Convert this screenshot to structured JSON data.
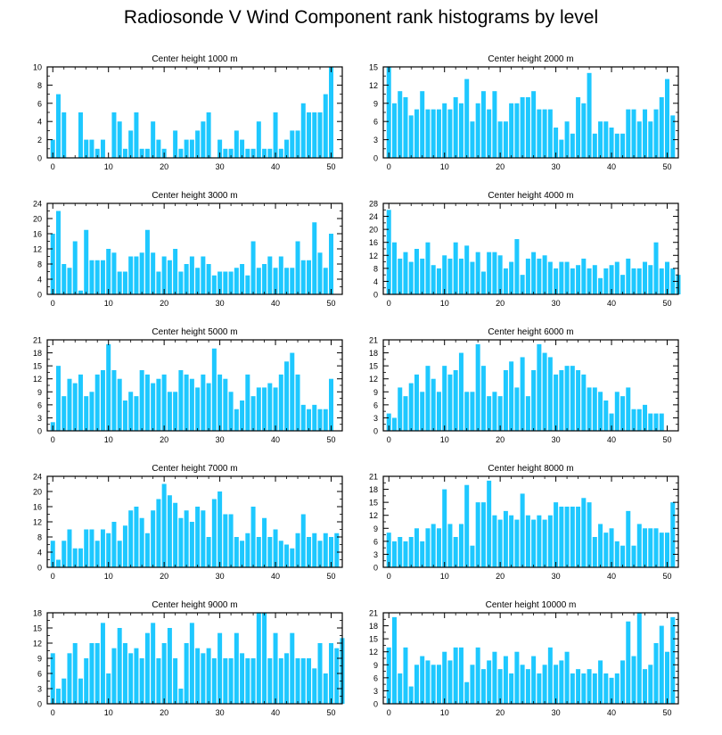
{
  "page_title": "Radiosonde V Wind Component rank histograms by level",
  "bar_color": "#1ec8ff",
  "chart_data": [
    {
      "type": "bar",
      "title": "Center height 1000 m",
      "xlabel": "",
      "ylabel": "",
      "xlim": [
        -1,
        52
      ],
      "ylim": [
        0,
        10
      ],
      "xticks": [
        0,
        10,
        20,
        30,
        40,
        50
      ],
      "yticks": [
        0,
        2,
        4,
        6,
        8,
        10
      ],
      "values": [
        2,
        7,
        5,
        0,
        0,
        5,
        2,
        2,
        1,
        2,
        0,
        5,
        4,
        1,
        3,
        5,
        1,
        1,
        4,
        2,
        1,
        0,
        3,
        1,
        2,
        2,
        3,
        4,
        5,
        0,
        2,
        1,
        1,
        3,
        2,
        1,
        1,
        4,
        1,
        1,
        5,
        1,
        2,
        3,
        3,
        6,
        5,
        5,
        5,
        7,
        10
      ]
    },
    {
      "type": "bar",
      "title": "Center height 2000 m",
      "xlabel": "",
      "ylabel": "",
      "xlim": [
        -1,
        52
      ],
      "ylim": [
        0,
        15
      ],
      "xticks": [
        0,
        10,
        20,
        30,
        40,
        50
      ],
      "yticks": [
        0,
        3,
        6,
        9,
        12,
        15
      ],
      "values": [
        15,
        9,
        11,
        10,
        7,
        8,
        11,
        8,
        8,
        8,
        9,
        8,
        10,
        9,
        13,
        6,
        9,
        11,
        8,
        11,
        6,
        6,
        9,
        9,
        10,
        10,
        11,
        8,
        8,
        8,
        5,
        3,
        6,
        4,
        10,
        9,
        14,
        4,
        6,
        6,
        5,
        4,
        4,
        8,
        8,
        6,
        8,
        6,
        8,
        10,
        13,
        7
      ]
    },
    {
      "type": "bar",
      "title": "Center height 3000 m",
      "xlabel": "",
      "ylabel": "",
      "xlim": [
        -1,
        52
      ],
      "ylim": [
        0,
        24
      ],
      "xticks": [
        0,
        10,
        20,
        30,
        40,
        50
      ],
      "yticks": [
        0,
        4,
        8,
        12,
        16,
        20,
        24
      ],
      "values": [
        16,
        22,
        8,
        7,
        14,
        1,
        17,
        9,
        9,
        9,
        12,
        11,
        6,
        6,
        10,
        10,
        11,
        17,
        11,
        6,
        10,
        9,
        12,
        6,
        8,
        10,
        7,
        10,
        8,
        5,
        6,
        6,
        6,
        7,
        8,
        5,
        14,
        7,
        8,
        10,
        7,
        10,
        7,
        7,
        14,
        9,
        9,
        19,
        11,
        7,
        16
      ]
    },
    {
      "type": "bar",
      "title": "Center height 4000 m",
      "xlabel": "",
      "ylabel": "",
      "xlim": [
        -1,
        52
      ],
      "ylim": [
        0,
        28
      ],
      "xticks": [
        0,
        10,
        20,
        30,
        40,
        50
      ],
      "yticks": [
        0,
        4,
        8,
        12,
        16,
        20,
        24,
        28
      ],
      "values": [
        26,
        16,
        11,
        13,
        10,
        14,
        11,
        16,
        9,
        8,
        12,
        11,
        16,
        11,
        15,
        10,
        13,
        7,
        13,
        13,
        12,
        8,
        10,
        17,
        6,
        11,
        13,
        11,
        12,
        10,
        8,
        10,
        10,
        8,
        9,
        11,
        8,
        9,
        5,
        8,
        9,
        10,
        6,
        11,
        8,
        8,
        10,
        9,
        16,
        8,
        10,
        8,
        6
      ]
    },
    {
      "type": "bar",
      "title": "Center height 5000 m",
      "xlabel": "",
      "ylabel": "",
      "xlim": [
        -1,
        52
      ],
      "ylim": [
        0,
        21
      ],
      "xticks": [
        0,
        10,
        20,
        30,
        40,
        50
      ],
      "yticks": [
        0,
        3,
        6,
        9,
        12,
        15,
        18,
        21
      ],
      "values": [
        2,
        15,
        8,
        12,
        11,
        13,
        8,
        9,
        13,
        14,
        20,
        14,
        12,
        7,
        9,
        8,
        14,
        13,
        11,
        12,
        13,
        9,
        9,
        14,
        13,
        12,
        10,
        13,
        11,
        19,
        13,
        12,
        9,
        5,
        7,
        13,
        8,
        10,
        10,
        11,
        10,
        13,
        16,
        18,
        13,
        6,
        5,
        6,
        5,
        5,
        12
      ]
    },
    {
      "type": "bar",
      "title": "Center height 6000 m",
      "xlabel": "",
      "ylabel": "",
      "xlim": [
        -1,
        52
      ],
      "ylim": [
        0,
        21
      ],
      "xticks": [
        0,
        10,
        20,
        30,
        40,
        50
      ],
      "yticks": [
        0,
        3,
        6,
        9,
        12,
        15,
        18,
        21
      ],
      "values": [
        4,
        3,
        10,
        8,
        11,
        13,
        9,
        15,
        12,
        9,
        15,
        13,
        14,
        18,
        9,
        9,
        20,
        15,
        8,
        9,
        8,
        14,
        16,
        10,
        17,
        8,
        14,
        20,
        18,
        17,
        13,
        14,
        15,
        15,
        14,
        13,
        10,
        10,
        9,
        7,
        4,
        9,
        8,
        10,
        5,
        5,
        6,
        4,
        4,
        4
      ]
    },
    {
      "type": "bar",
      "title": "Center height 7000 m",
      "xlabel": "",
      "ylabel": "",
      "xlim": [
        -1,
        52
      ],
      "ylim": [
        0,
        24
      ],
      "xticks": [
        0,
        10,
        20,
        30,
        40,
        50
      ],
      "yticks": [
        0,
        4,
        8,
        12,
        16,
        20,
        24
      ],
      "values": [
        7,
        2,
        7,
        10,
        5,
        5,
        10,
        10,
        7,
        10,
        9,
        12,
        7,
        11,
        15,
        16,
        13,
        9,
        15,
        18,
        22,
        19,
        17,
        13,
        15,
        12,
        16,
        15,
        8,
        18,
        20,
        14,
        14,
        8,
        7,
        9,
        16,
        8,
        13,
        8,
        10,
        7,
        6,
        5,
        9,
        14,
        8,
        9,
        7,
        9,
        8,
        9
      ]
    },
    {
      "type": "bar",
      "title": "Center height 8000 m",
      "xlabel": "",
      "ylabel": "",
      "xlim": [
        -1,
        52
      ],
      "ylim": [
        0,
        21
      ],
      "xticks": [
        0,
        10,
        20,
        30,
        40,
        50
      ],
      "yticks": [
        0,
        3,
        6,
        9,
        12,
        15,
        18,
        21
      ],
      "values": [
        8,
        6,
        7,
        6,
        7,
        9,
        6,
        9,
        10,
        9,
        18,
        10,
        7,
        10,
        19,
        5,
        15,
        15,
        20,
        12,
        11,
        13,
        12,
        11,
        17,
        12,
        11,
        12,
        11,
        12,
        15,
        14,
        14,
        14,
        14,
        16,
        15,
        7,
        10,
        8,
        9,
        6,
        5,
        13,
        5,
        10,
        9,
        9,
        9,
        8,
        8,
        15
      ]
    },
    {
      "type": "bar",
      "title": "Center height 9000 m",
      "xlabel": "",
      "ylabel": "",
      "xlim": [
        -1,
        52
      ],
      "ylim": [
        0,
        18
      ],
      "xticks": [
        0,
        10,
        20,
        30,
        40,
        50
      ],
      "yticks": [
        0,
        3,
        6,
        9,
        12,
        15,
        18
      ],
      "values": [
        10,
        3,
        5,
        10,
        12,
        5,
        9,
        12,
        12,
        16,
        6,
        11,
        15,
        12,
        10,
        11,
        9,
        14,
        16,
        9,
        12,
        15,
        9,
        3,
        12,
        16,
        11,
        10,
        11,
        9,
        14,
        9,
        9,
        14,
        10,
        9,
        9,
        18,
        18,
        9,
        14,
        9,
        10,
        14,
        9,
        9,
        9,
        7,
        12,
        6,
        12,
        11,
        13
      ]
    },
    {
      "type": "bar",
      "title": "Center height 10000 m",
      "xlabel": "",
      "ylabel": "",
      "xlim": [
        -1,
        52
      ],
      "ylim": [
        0,
        21
      ],
      "xticks": [
        0,
        10,
        20,
        30,
        40,
        50
      ],
      "yticks": [
        0,
        3,
        6,
        9,
        12,
        15,
        18,
        21
      ],
      "values": [
        13,
        20,
        7,
        13,
        4,
        9,
        11,
        10,
        9,
        9,
        12,
        10,
        13,
        13,
        5,
        9,
        13,
        8,
        10,
        12,
        8,
        11,
        7,
        12,
        9,
        8,
        11,
        7,
        9,
        13,
        9,
        10,
        12,
        7,
        8,
        7,
        8,
        7,
        10,
        7,
        6,
        7,
        10,
        19,
        11,
        21,
        8,
        9,
        14,
        18,
        12,
        20
      ]
    }
  ]
}
